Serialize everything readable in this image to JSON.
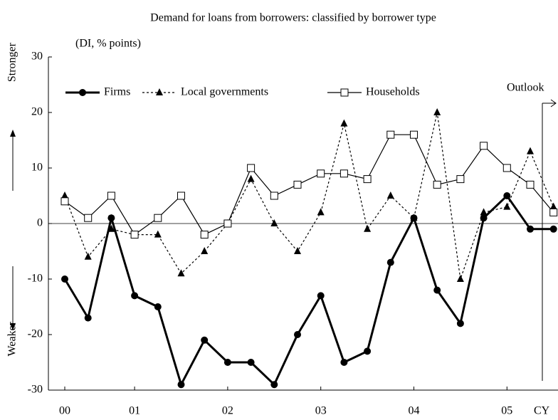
{
  "chart_data": {
    "type": "line",
    "title": "Demand for loans from borrowers: classified by borrower type",
    "y_label": "(DI, % points)",
    "annotations": {
      "stronger": "Stronger",
      "weaker": "Weaker",
      "outlook": "Outlook",
      "x_unit": "CY"
    },
    "categories": [
      "00",
      null,
      null,
      "01",
      null,
      null,
      null,
      "02",
      null,
      null,
      null,
      "03",
      null,
      null,
      null,
      "04",
      null,
      null,
      null,
      "05",
      null,
      null
    ],
    "series": [
      {
        "name": "Firms",
        "color": "#000000",
        "marker": "circle",
        "dash": "solid",
        "width": 3,
        "values": [
          -10,
          -17,
          1,
          -13,
          -15,
          -29,
          -21,
          -25,
          -25,
          -29,
          -20,
          -13,
          -25,
          -23,
          -7,
          1,
          -12,
          -18,
          1,
          5,
          -1,
          -1
        ]
      },
      {
        "name": "Local governments",
        "color": "#000000",
        "marker": "triangle",
        "dash": "dotted",
        "width": 1.2,
        "values": [
          5,
          -6,
          -1,
          -2,
          -2,
          -9,
          -5,
          0,
          8,
          0,
          -5,
          2,
          18,
          -1,
          5,
          1,
          20,
          -10,
          2,
          3,
          13,
          3
        ]
      },
      {
        "name": "Households",
        "color": "#000000",
        "marker": "square",
        "dash": "solid",
        "width": 1.2,
        "values": [
          4,
          1,
          5,
          -2,
          1,
          5,
          -2,
          0,
          10,
          5,
          7,
          9,
          9,
          8,
          16,
          16,
          7,
          8,
          14,
          10,
          7,
          2
        ]
      }
    ],
    "ylim": [
      -30,
      30
    ],
    "yticks": [
      -30,
      -20,
      -10,
      0,
      10,
      20,
      30
    ],
    "legend": "top-left"
  }
}
